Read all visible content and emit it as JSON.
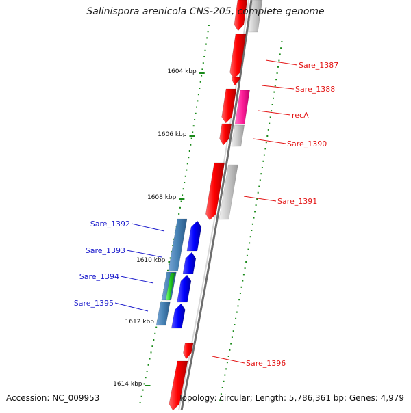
{
  "title": "Salinispora arenicola CNS-205, complete genome",
  "footer": {
    "accession": "Accession: NC_009953",
    "summary": "Topology: circular; Length: 5,786,361 bp; Genes: 4,979"
  },
  "scale": [
    {
      "label": "1604 kbp"
    },
    {
      "label": "1606 kbp"
    },
    {
      "label": "1608 kbp"
    },
    {
      "label": "1610 kbp"
    },
    {
      "label": "1612 kbp"
    },
    {
      "label": "1614 kbp"
    }
  ],
  "genes": [
    {
      "name": "Sare_1387",
      "color": "#e31414"
    },
    {
      "name": "Sare_1388",
      "color": "#e31414"
    },
    {
      "name": "recA",
      "color": "#e31414"
    },
    {
      "name": "Sare_1390",
      "color": "#e31414"
    },
    {
      "name": "Sare_1391",
      "color": "#e31414"
    },
    {
      "name": "Sare_1392",
      "color": "#1c1ccc"
    },
    {
      "name": "Sare_1393",
      "color": "#1c1ccc"
    },
    {
      "name": "Sare_1394",
      "color": "#1c1ccc"
    },
    {
      "name": "Sare_1395",
      "color": "#1c1ccc"
    },
    {
      "name": "Sare_1396",
      "color": "#e31414"
    }
  ],
  "colors": {
    "forward_gene": "#ff0000",
    "reverse_gene": "#0000ff",
    "ticks": "#1a8a1a",
    "backbone": "#888888"
  }
}
